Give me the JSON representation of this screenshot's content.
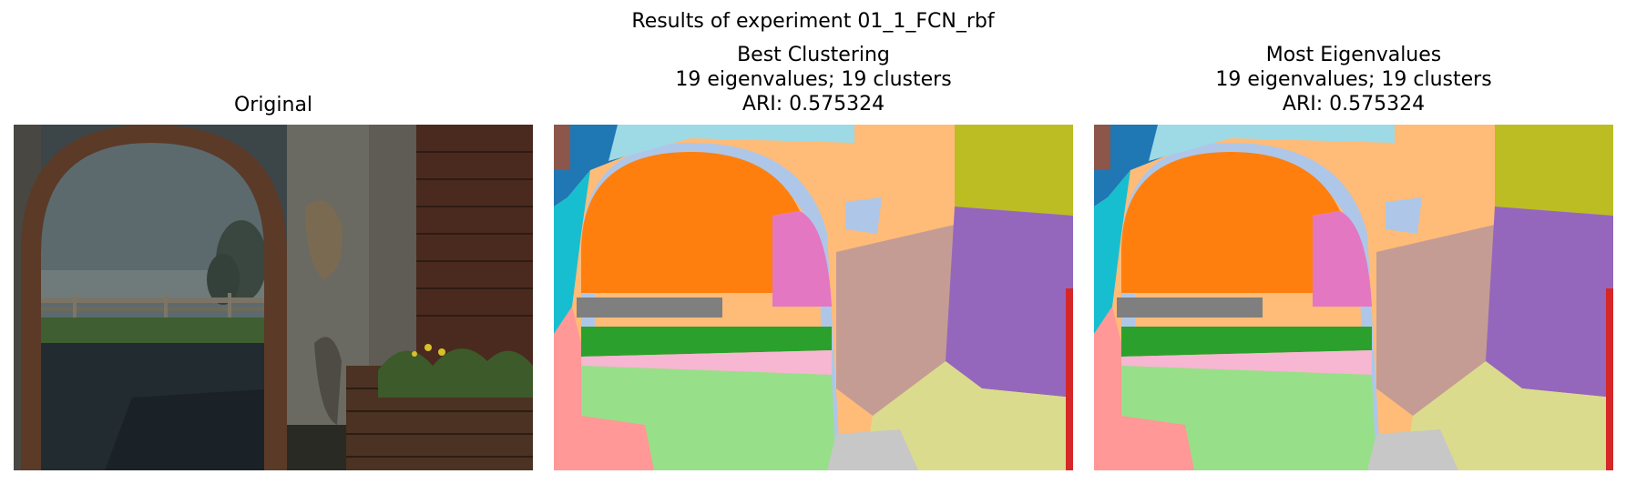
{
  "figure": {
    "suptitle": "Results of experiment 01_1_FCN_rbf"
  },
  "panels": [
    {
      "title_lines": [
        "Original"
      ]
    },
    {
      "title_lines": [
        "Best Clustering",
        "19 eigenvalues; 19 clusters",
        "ARI: 0.575324"
      ]
    },
    {
      "title_lines": [
        "Most Eigenvalues",
        "19 eigenvalues; 19 clusters",
        "ARI: 0.575324"
      ]
    }
  ],
  "colors": {
    "tab20": [
      "#1f77b4",
      "#aec7e8",
      "#ff7f0e",
      "#ffbb78",
      "#2ca02c",
      "#98df8a",
      "#d62728",
      "#ff9896",
      "#9467bd",
      "#c5b0d5",
      "#8c564b",
      "#c49c94",
      "#e377c2",
      "#f7b6d2",
      "#7f7f7f",
      "#c7c7c7",
      "#bcbd22",
      "#dbdb8d",
      "#17becf",
      "#9edae5"
    ]
  }
}
